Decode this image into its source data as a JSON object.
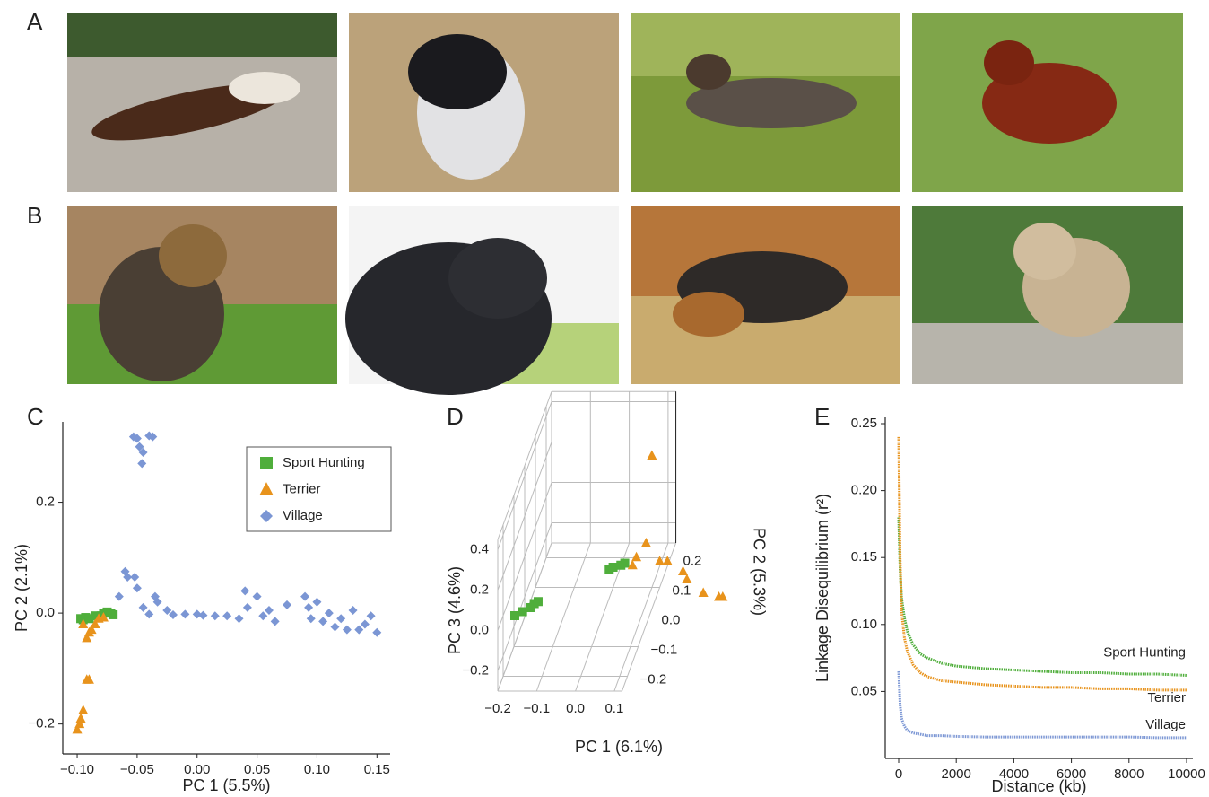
{
  "panel_labels": [
    "A",
    "B",
    "C",
    "D",
    "E"
  ],
  "chart_data": [
    {
      "type": "scatter",
      "xlabel": "PC 1 (5.5%)",
      "ylabel": "PC 2 (2.1%)",
      "xlim": [
        -0.112,
        0.161
      ],
      "ylim": [
        -0.254,
        0.345
      ],
      "xticks": [
        {
          "value": -0.1,
          "label": "−0.10"
        },
        {
          "value": -0.05,
          "label": "−0.05"
        },
        {
          "value": 0,
          "label": "0.00"
        },
        {
          "value": 0.05,
          "label": "0.05"
        },
        {
          "value": 0.1,
          "label": "0.10"
        },
        {
          "value": 0.15,
          "label": "0.15"
        }
      ],
      "yticks": [
        {
          "value": -0.2,
          "label": "−0.2"
        },
        {
          "value": 0,
          "label": "0.0"
        },
        0.2
      ],
      "legend": "upper right",
      "series": [
        {
          "name": "Sport Hunting",
          "color": "#4fae3b",
          "marker": "square",
          "x": [
            -0.097,
            -0.095,
            -0.093,
            -0.09,
            -0.085,
            -0.08,
            -0.078,
            -0.075,
            -0.072,
            -0.07
          ],
          "y": [
            -0.01,
            -0.012,
            -0.008,
            -0.01,
            -0.005,
            -0.005,
            0,
            0.002,
            0,
            -0.003
          ]
        },
        {
          "name": "Terrier",
          "color": "#e8931c",
          "marker": "triangle",
          "x": [
            -0.1,
            -0.098,
            -0.097,
            -0.095,
            -0.092,
            -0.09,
            -0.092,
            -0.09,
            -0.088,
            -0.085,
            -0.082,
            -0.078,
            -0.095
          ],
          "y": [
            -0.21,
            -0.2,
            -0.19,
            -0.175,
            -0.12,
            -0.12,
            -0.045,
            -0.035,
            -0.03,
            -0.02,
            -0.01,
            -0.008,
            -0.02
          ]
        },
        {
          "name": "Village",
          "color": "#7b96d4",
          "marker": "diamond",
          "x": [
            -0.053,
            -0.05,
            -0.048,
            -0.045,
            -0.046,
            -0.04,
            -0.037,
            -0.065,
            -0.06,
            -0.058,
            -0.052,
            -0.05,
            -0.045,
            -0.04,
            -0.035,
            -0.033,
            -0.025,
            -0.02,
            -0.01,
            0,
            0.005,
            0.015,
            0.025,
            0.035,
            0.04,
            0.042,
            0.05,
            0.055,
            0.06,
            0.065,
            0.075,
            0.09,
            0.093,
            0.095,
            0.1,
            0.105,
            0.11,
            0.115,
            0.12,
            0.125,
            0.13,
            0.135,
            0.14,
            0.145,
            0.15
          ],
          "y": [
            0.318,
            0.315,
            0.3,
            0.29,
            0.27,
            0.32,
            0.318,
            0.03,
            0.075,
            0.065,
            0.065,
            0.045,
            0.01,
            -0.002,
            0.03,
            0.02,
            0.005,
            -0.003,
            -0.002,
            -0.002,
            -0.004,
            -0.005,
            -0.005,
            -0.01,
            0.04,
            0.01,
            0.03,
            -0.005,
            0.005,
            -0.015,
            0.015,
            0.03,
            0.01,
            -0.01,
            0.02,
            -0.015,
            0,
            -0.025,
            -0.01,
            -0.03,
            0.005,
            -0.03,
            -0.02,
            -0.005,
            -0.035
          ]
        }
      ]
    },
    {
      "type": "scatter3d",
      "xlabel": "PC 1 (6.1%)",
      "ylabel": "PC 2 (5.3%)",
      "zlabel": "PC 3 (4.6%)",
      "xlim": [
        -0.2,
        0.12
      ],
      "ylim": [
        -0.25,
        0.25
      ],
      "zlim": [
        -0.3,
        0.45
      ],
      "xticks": [
        {
          "value": -0.2,
          "label": "−0.2"
        },
        {
          "value": -0.1,
          "label": "−0.1"
        },
        {
          "value": 0,
          "label": "0.0"
        },
        0.1
      ],
      "yticks": [
        {
          "value": -0.2,
          "label": "−0.2"
        },
        {
          "value": -0.1,
          "label": "−0.1"
        },
        {
          "value": 0,
          "label": "0.0"
        },
        0.1,
        0.2
      ],
      "zticks": [
        {
          "value": -0.2,
          "label": "−0.2"
        },
        {
          "value": 0,
          "label": "0.0"
        },
        0.2,
        0.4
      ],
      "series": [
        {
          "name": "Sport Hunting",
          "color": "#4fae3b",
          "marker": "square",
          "x": [
            -0.17,
            -0.15,
            -0.13,
            -0.12,
            -0.11,
            -0.01,
            0,
            0.02,
            0.03
          ],
          "y": [
            -0.2,
            -0.2,
            -0.2,
            -0.2,
            -0.2,
            0.1,
            0.1,
            0.1,
            0.1
          ],
          "z": [
            0,
            0.02,
            0.04,
            0.06,
            0.07,
            -0.21,
            -0.2,
            -0.19,
            -0.18
          ]
        },
        {
          "name": "Terrier",
          "color": "#e8931c",
          "marker": "triangle",
          "x": [
            0.086,
            0.06,
            0.085,
            0.12,
            0.14,
            0.18,
            0.19,
            0.26,
            0.3,
            0.31,
            0.05
          ],
          "y": [
            0.15,
            0.1,
            0.1,
            0.1,
            0.1,
            0.1,
            0.1,
            0,
            0,
            0,
            0.1
          ],
          "z": [
            0.28,
            -0.15,
            -0.08,
            -0.17,
            -0.17,
            -0.22,
            -0.26,
            -0.18,
            -0.2,
            -0.2,
            -0.19
          ]
        }
      ]
    },
    {
      "type": "line",
      "xlabel": "Distance (kb)",
      "ylabel": "Linkage Disequilibrium (r²)",
      "xlim": [
        -467,
        10218
      ],
      "ylim": [
        0,
        0.2547
      ],
      "xticks": [
        0,
        2000,
        4000,
        6000,
        8000,
        10000
      ],
      "yticks": [
        0.05,
        {
          "value": 0.1,
          "label": "0.10"
        },
        0.15,
        {
          "value": 0.2,
          "label": "0.20"
        },
        0.25
      ],
      "x": [
        0,
        50,
        100,
        200,
        300,
        500,
        750,
        1000,
        1500,
        2000,
        3000,
        4000,
        5000,
        6000,
        7000,
        8000,
        9000,
        10000
      ],
      "series": [
        {
          "name": "Sport Hunting",
          "color": "#4fae3b",
          "values": [
            0.18,
            0.14,
            0.12,
            0.105,
            0.095,
            0.085,
            0.078,
            0.075,
            0.071,
            0.069,
            0.067,
            0.066,
            0.065,
            0.064,
            0.064,
            0.063,
            0.063,
            0.062
          ]
        },
        {
          "name": "Terrier",
          "color": "#e8931c",
          "values": [
            0.24,
            0.15,
            0.11,
            0.09,
            0.08,
            0.07,
            0.064,
            0.061,
            0.058,
            0.057,
            0.055,
            0.054,
            0.053,
            0.053,
            0.052,
            0.052,
            0.051,
            0.051
          ]
        },
        {
          "name": "Village",
          "color": "#7b96d4",
          "values": [
            0.065,
            0.04,
            0.03,
            0.024,
            0.021,
            0.019,
            0.018,
            0.017,
            0.017,
            0.0165,
            0.016,
            0.016,
            0.016,
            0.016,
            0.016,
            0.016,
            0.0155,
            0.0155
          ]
        }
      ]
    }
  ]
}
